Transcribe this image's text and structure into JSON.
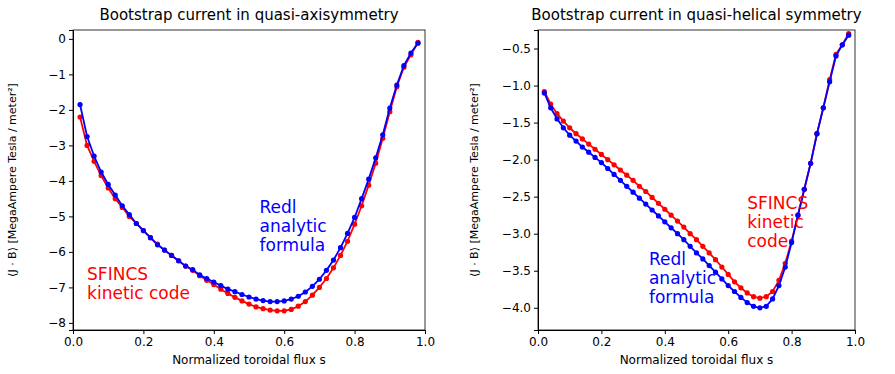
{
  "chart_data": [
    {
      "type": "line",
      "title": "Bootstrap current in quasi-axisymmetry",
      "x_label": "Normalized toroidal flux s",
      "y_label": "⟨J · B⟩ [MegaAmpere Tesla / meter²]",
      "x": [
        0.02,
        0.04,
        0.06,
        0.08,
        0.1,
        0.12,
        0.14,
        0.16,
        0.18,
        0.2,
        0.22,
        0.24,
        0.26,
        0.28,
        0.3,
        0.32,
        0.34,
        0.36,
        0.38,
        0.4,
        0.42,
        0.44,
        0.46,
        0.48,
        0.5,
        0.52,
        0.54,
        0.56,
        0.58,
        0.6,
        0.62,
        0.64,
        0.66,
        0.68,
        0.7,
        0.72,
        0.74,
        0.76,
        0.78,
        0.8,
        0.82,
        0.84,
        0.86,
        0.88,
        0.9,
        0.92,
        0.94,
        0.96,
        0.98
      ],
      "series": [
        {
          "color": "#ff0000",
          "marker": "o",
          "line_style": "solid",
          "values": [
            -2.2,
            -3.0,
            -3.45,
            -3.85,
            -4.2,
            -4.5,
            -4.75,
            -5.0,
            -5.2,
            -5.4,
            -5.6,
            -5.78,
            -5.95,
            -6.1,
            -6.25,
            -6.4,
            -6.52,
            -6.67,
            -6.8,
            -6.92,
            -7.05,
            -7.17,
            -7.28,
            -7.38,
            -7.47,
            -7.55,
            -7.6,
            -7.64,
            -7.66,
            -7.66,
            -7.62,
            -7.53,
            -7.4,
            -7.22,
            -7.0,
            -6.75,
            -6.45,
            -6.1,
            -5.7,
            -5.22,
            -4.7,
            -4.12,
            -3.5,
            -2.8,
            -2.05,
            -1.35,
            -0.8,
            -0.45,
            -0.1
          ]
        },
        {
          "color": "#0000ff",
          "marker": "o",
          "line_style": "solid",
          "values": [
            -1.85,
            -2.75,
            -3.3,
            -3.75,
            -4.1,
            -4.4,
            -4.7,
            -4.95,
            -5.2,
            -5.4,
            -5.6,
            -5.8,
            -5.95,
            -6.1,
            -6.25,
            -6.4,
            -6.5,
            -6.65,
            -6.75,
            -6.85,
            -6.95,
            -7.05,
            -7.12,
            -7.2,
            -7.27,
            -7.33,
            -7.37,
            -7.4,
            -7.4,
            -7.38,
            -7.33,
            -7.25,
            -7.13,
            -6.97,
            -6.77,
            -6.52,
            -6.23,
            -5.88,
            -5.48,
            -5.03,
            -4.5,
            -3.95,
            -3.35,
            -2.7,
            -1.95,
            -1.3,
            -0.75,
            -0.4,
            -0.12
          ]
        }
      ],
      "annotations": [
        {
          "text": [
            "Redl",
            "analytic",
            "formula"
          ],
          "x": 0.53,
          "y": -4.45,
          "color": "#0000ff"
        },
        {
          "text": [
            "SFINCS",
            "kinetic code"
          ],
          "x": 0.04,
          "y": -6.35,
          "color": "#ff0000"
        }
      ],
      "xlim": [
        0,
        1
      ],
      "xticks": [
        {
          "value": 0,
          "label": "0.0"
        },
        {
          "value": 0.2,
          "label": "0.2"
        },
        {
          "value": 0.4,
          "label": "0.4"
        },
        {
          "value": 0.6,
          "label": "0.6"
        },
        {
          "value": 0.8,
          "label": "0.8"
        },
        {
          "value": 1,
          "label": "1.0"
        }
      ],
      "ylim": [
        -8.2,
        0.25
      ],
      "yticks": [
        {
          "value": -8,
          "label": "−8"
        },
        {
          "value": -7,
          "label": "−7"
        },
        {
          "value": -6,
          "label": "−6"
        },
        {
          "value": -5,
          "label": "−5"
        },
        {
          "value": -4,
          "label": "−4"
        },
        {
          "value": -3,
          "label": "−3"
        },
        {
          "value": -2,
          "label": "−2"
        },
        {
          "value": -1,
          "label": "−1"
        },
        0
      ],
      "grid": false
    },
    {
      "type": "line",
      "title": "Bootstrap current in quasi-helical symmetry",
      "x_label": "Normalized toroidal flux s",
      "y_label": "⟨J · B⟩ [MegaAmpere Tesla / meter²]",
      "x": [
        0.02,
        0.04,
        0.06,
        0.08,
        0.1,
        0.12,
        0.14,
        0.16,
        0.18,
        0.2,
        0.22,
        0.24,
        0.26,
        0.28,
        0.3,
        0.32,
        0.34,
        0.36,
        0.38,
        0.4,
        0.42,
        0.44,
        0.46,
        0.48,
        0.5,
        0.52,
        0.54,
        0.56,
        0.58,
        0.6,
        0.62,
        0.64,
        0.66,
        0.68,
        0.7,
        0.72,
        0.74,
        0.76,
        0.78,
        0.8,
        0.82,
        0.84,
        0.86,
        0.88,
        0.9,
        0.92,
        0.94,
        0.96,
        0.98
      ],
      "series": [
        {
          "color": "#ff0000",
          "marker": "o",
          "line_style": "solid",
          "values": [
            -1.08,
            -1.25,
            -1.38,
            -1.48,
            -1.57,
            -1.65,
            -1.72,
            -1.79,
            -1.86,
            -1.93,
            -2.0,
            -2.07,
            -2.14,
            -2.21,
            -2.28,
            -2.36,
            -2.43,
            -2.51,
            -2.59,
            -2.67,
            -2.75,
            -2.83,
            -2.91,
            -3.0,
            -3.08,
            -3.17,
            -3.26,
            -3.35,
            -3.45,
            -3.55,
            -3.65,
            -3.73,
            -3.8,
            -3.85,
            -3.87,
            -3.85,
            -3.78,
            -3.63,
            -3.4,
            -3.1,
            -2.75,
            -2.4,
            -2.05,
            -1.65,
            -1.3,
            -0.92,
            -0.58,
            -0.45,
            -0.3
          ]
        },
        {
          "color": "#0000ff",
          "marker": "o",
          "line_style": "solid",
          "values": [
            -1.1,
            -1.3,
            -1.45,
            -1.57,
            -1.67,
            -1.75,
            -1.83,
            -1.9,
            -1.97,
            -2.04,
            -2.12,
            -2.2,
            -2.28,
            -2.36,
            -2.44,
            -2.52,
            -2.6,
            -2.68,
            -2.76,
            -2.84,
            -2.92,
            -3.0,
            -3.08,
            -3.17,
            -3.26,
            -3.34,
            -3.43,
            -3.52,
            -3.61,
            -3.7,
            -3.78,
            -3.86,
            -3.93,
            -3.98,
            -4.0,
            -3.98,
            -3.88,
            -3.7,
            -3.45,
            -3.12,
            -2.75,
            -2.4,
            -2.05,
            -1.65,
            -1.3,
            -0.95,
            -0.6,
            -0.45,
            -0.32
          ]
        }
      ],
      "annotations": [
        {
          "text": [
            "SFINCS",
            "kinetic",
            "code"
          ],
          "x": 0.66,
          "y": -2.45,
          "color": "#ff0000"
        },
        {
          "text": [
            "Redl",
            "analytic",
            "formula"
          ],
          "x": 0.35,
          "y": -3.2,
          "color": "#0000ff"
        }
      ],
      "xlim": [
        0,
        1
      ],
      "xticks": [
        {
          "value": 0,
          "label": "0.0"
        },
        {
          "value": 0.2,
          "label": "0.2"
        },
        {
          "value": 0.4,
          "label": "0.4"
        },
        {
          "value": 0.6,
          "label": "0.6"
        },
        {
          "value": 0.8,
          "label": "0.8"
        },
        {
          "value": 1,
          "label": "1.0"
        }
      ],
      "ylim": [
        -4.3,
        -0.25
      ],
      "yticks": [
        {
          "value": -4,
          "label": "−4.0"
        },
        {
          "value": -3.5,
          "label": "−3.5"
        },
        {
          "value": -3,
          "label": "−3.0"
        },
        {
          "value": -2.5,
          "label": "−2.5"
        },
        {
          "value": -2,
          "label": "−2.0"
        },
        {
          "value": -1.5,
          "label": "−1.5"
        },
        {
          "value": -1,
          "label": "−1.0"
        },
        {
          "value": -0.5,
          "label": "−0.5"
        }
      ],
      "grid": false
    }
  ]
}
